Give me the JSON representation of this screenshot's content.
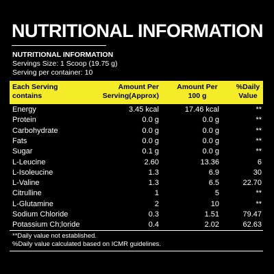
{
  "header": {
    "title": "NUTRITIONAL INFORMATION"
  },
  "info": {
    "heading": "NUTRITIONAL INFORMATION",
    "lines": [
      "Servings Size: 1 Scoop (19.75 g)",
      "Serving per container: 10"
    ]
  },
  "table": {
    "columns": [
      [
        "Each Serving",
        "contains"
      ],
      [
        "Amount Per",
        "Serving(Approx)"
      ],
      [
        "Amount Per",
        "100 g"
      ],
      [
        "%Daily",
        "Value"
      ]
    ],
    "rows": [
      [
        "Energy",
        "3.45 kcal",
        "17.46 kcal",
        "**"
      ],
      [
        "Protein",
        "0.0 g",
        "0.0 g",
        "**"
      ],
      [
        "Carbohydrate",
        "0.0 g",
        "0.0 g",
        "**"
      ],
      [
        "Fats",
        "0.0 g",
        "0.0 g",
        "**"
      ],
      [
        "Sugar",
        "0.1 g",
        "0.0 g",
        "**"
      ],
      [
        "L-Leucine",
        "2.60",
        "13.36",
        "6"
      ],
      [
        "L-Isoleucine",
        "1.3",
        "6.9",
        "30"
      ],
      [
        "L-Valine",
        "1.3",
        "6.5",
        "22.70"
      ],
      [
        "Citrulline",
        "1",
        "5",
        "**"
      ],
      [
        "L-Glutamine",
        "2",
        "10",
        "**"
      ],
      [
        "Sodium Chloride",
        "0.3",
        "1.51",
        "79.47"
      ],
      [
        "Potassium Ch;loride",
        "0.4",
        "2.02",
        "62.63"
      ]
    ]
  },
  "footnotes": [
    "**Daily value not established.",
    "%Daily value calculated based on ICMR guidelines."
  ]
}
